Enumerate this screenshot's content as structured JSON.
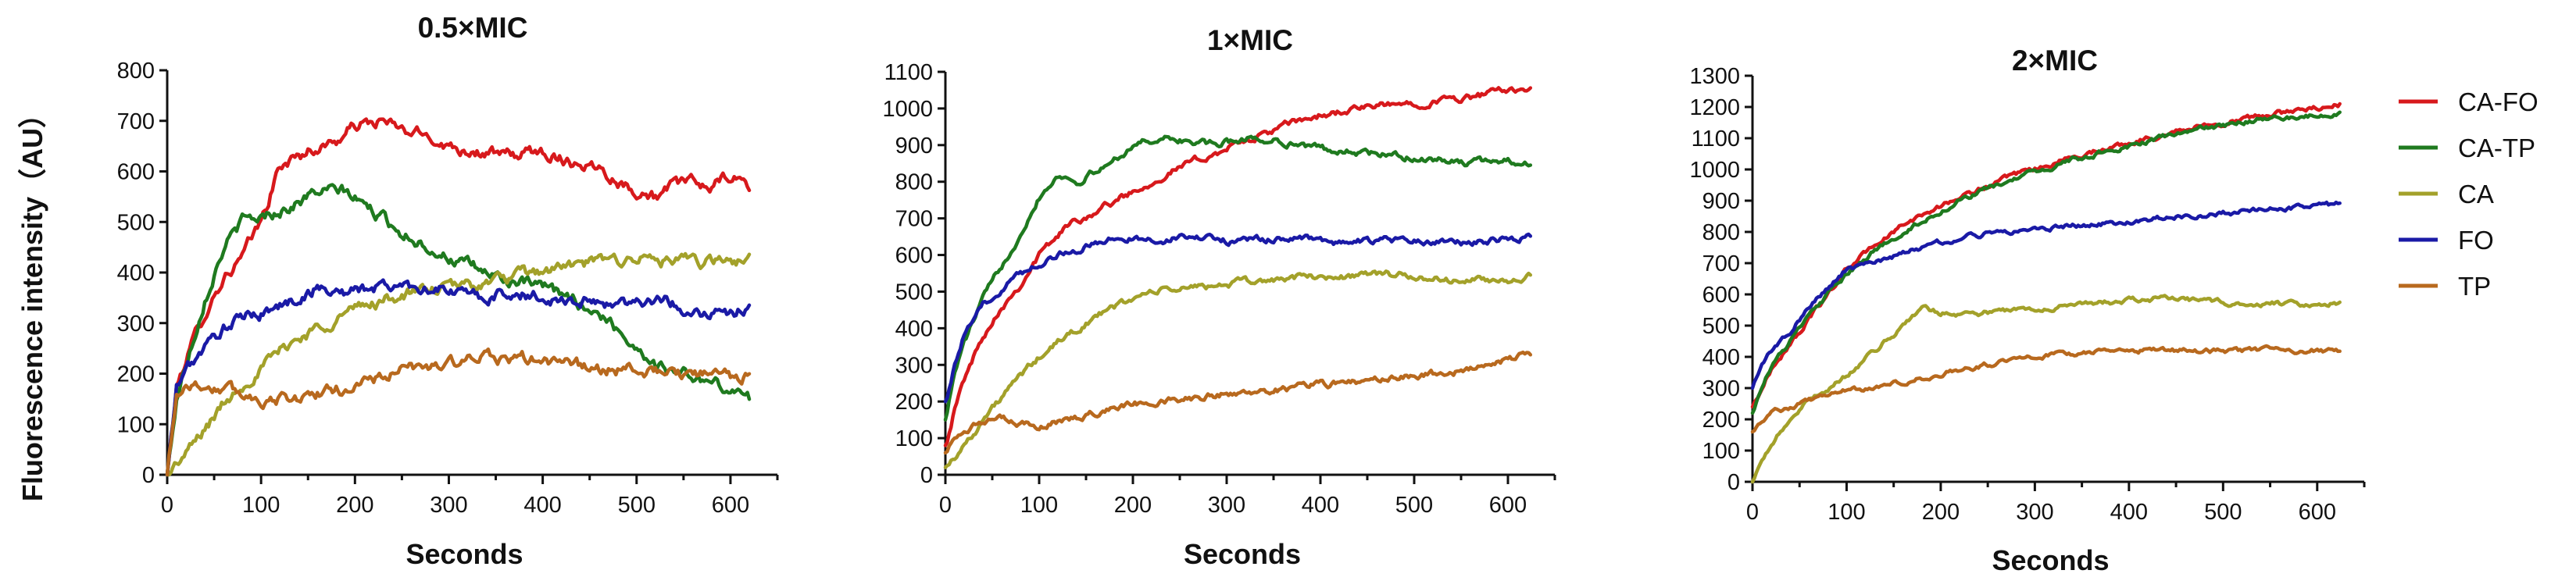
{
  "colors": {
    "CA-FO": "#d7191c",
    "CA-TP": "#1f7a1f",
    "CA": "#a3a12a",
    "FO": "#1a1aa6",
    "TP": "#b8691e"
  },
  "legend": {
    "items": [
      "CA-FO",
      "CA-TP",
      "CA",
      "FO",
      "TP"
    ]
  },
  "ylabel": "Fluorescence intensity（AU）",
  "chart_data": [
    {
      "type": "line",
      "title": "0.5×MIC",
      "xlabel": "Seconds",
      "xlim": [
        0,
        650
      ],
      "ylim": [
        0,
        800
      ],
      "xticks": [
        0,
        100,
        200,
        300,
        400,
        500,
        600
      ],
      "yticks": [
        0,
        100,
        200,
        300,
        400,
        500,
        600,
        700,
        800
      ],
      "noise": 18,
      "series": [
        {
          "name": "CA-FO",
          "x": [
            0,
            10,
            20,
            40,
            60,
            80,
            100,
            120,
            150,
            180,
            200,
            230,
            250,
            280,
            300,
            330,
            360,
            400,
            430,
            460,
            490,
            520,
            550,
            580,
            600,
            620
          ],
          "y": [
            0,
            170,
            230,
            320,
            390,
            430,
            500,
            610,
            640,
            660,
            690,
            700,
            680,
            670,
            650,
            640,
            630,
            640,
            620,
            610,
            570,
            550,
            580,
            570,
            590,
            570
          ]
        },
        {
          "name": "CA-TP",
          "x": [
            0,
            10,
            20,
            40,
            60,
            80,
            100,
            130,
            160,
            190,
            220,
            250,
            280,
            310,
            340,
            370,
            400,
            430,
            460,
            490,
            520,
            550,
            580,
            600,
            620
          ],
          "y": [
            0,
            150,
            220,
            350,
            450,
            500,
            510,
            530,
            560,
            560,
            520,
            480,
            450,
            420,
            400,
            380,
            370,
            350,
            320,
            270,
            220,
            200,
            180,
            170,
            150
          ]
        },
        {
          "name": "CA",
          "x": [
            0,
            20,
            40,
            60,
            80,
            100,
            130,
            160,
            190,
            220,
            260,
            300,
            340,
            380,
            420,
            460,
            500,
            540,
            580,
            620
          ],
          "y": [
            0,
            40,
            90,
            140,
            180,
            210,
            260,
            290,
            320,
            340,
            360,
            370,
            380,
            395,
            410,
            420,
            430,
            420,
            420,
            425
          ]
        },
        {
          "name": "FO",
          "x": [
            0,
            10,
            20,
            40,
            60,
            80,
            100,
            130,
            160,
            190,
            220,
            250,
            280,
            310,
            340,
            370,
            400,
            430,
            460,
            490,
            520,
            550,
            580,
            600,
            620
          ],
          "y": [
            0,
            170,
            210,
            250,
            290,
            310,
            320,
            340,
            370,
            360,
            370,
            375,
            370,
            360,
            350,
            360,
            350,
            345,
            340,
            340,
            350,
            330,
            320,
            320,
            330
          ]
        },
        {
          "name": "TP",
          "x": [
            0,
            10,
            20,
            40,
            60,
            80,
            100,
            130,
            160,
            190,
            220,
            260,
            300,
            340,
            380,
            420,
            460,
            500,
            540,
            580,
            620
          ],
          "y": [
            0,
            160,
            180,
            175,
            170,
            160,
            150,
            150,
            160,
            170,
            190,
            210,
            220,
            230,
            230,
            220,
            210,
            205,
            200,
            195,
            195
          ]
        }
      ]
    },
    {
      "type": "line",
      "title": "1×MIC",
      "xlabel": "Seconds",
      "xlim": [
        0,
        650
      ],
      "ylim": [
        0,
        1100
      ],
      "xticks": [
        0,
        100,
        200,
        300,
        400,
        500,
        600
      ],
      "yticks": [
        0,
        100,
        200,
        300,
        400,
        500,
        600,
        700,
        800,
        900,
        1000,
        1100
      ],
      "noise": 14,
      "series": [
        {
          "name": "CA-FO",
          "x": [
            0,
            10,
            20,
            40,
            60,
            80,
            100,
            130,
            160,
            190,
            220,
            250,
            280,
            310,
            340,
            370,
            400,
            440,
            480,
            520,
            560,
            600,
            625
          ],
          "y": [
            80,
            180,
            260,
            380,
            460,
            520,
            600,
            680,
            720,
            760,
            800,
            840,
            870,
            900,
            930,
            960,
            980,
            1000,
            1010,
            1020,
            1030,
            1050,
            1060
          ]
        },
        {
          "name": "CA-TP",
          "x": [
            0,
            10,
            20,
            40,
            60,
            80,
            100,
            120,
            140,
            170,
            200,
            230,
            260,
            290,
            320,
            360,
            400,
            440,
            480,
            520,
            560,
            600,
            625
          ],
          "y": [
            150,
            280,
            360,
            480,
            570,
            660,
            760,
            820,
            800,
            840,
            900,
            920,
            910,
            900,
            920,
            910,
            890,
            880,
            870,
            860,
            850,
            860,
            850
          ]
        },
        {
          "name": "CA",
          "x": [
            0,
            20,
            40,
            60,
            80,
            100,
            130,
            160,
            190,
            220,
            260,
            300,
            340,
            380,
            420,
            460,
            500,
            540,
            580,
            625
          ],
          "y": [
            20,
            80,
            150,
            210,
            270,
            320,
            380,
            430,
            470,
            500,
            510,
            520,
            530,
            540,
            540,
            550,
            540,
            530,
            530,
            540
          ]
        },
        {
          "name": "FO",
          "x": [
            0,
            10,
            20,
            40,
            60,
            80,
            100,
            130,
            160,
            190,
            220,
            260,
            300,
            340,
            380,
            420,
            460,
            500,
            540,
            580,
            625
          ],
          "y": [
            200,
            300,
            380,
            460,
            510,
            550,
            580,
            610,
            630,
            650,
            640,
            650,
            640,
            640,
            650,
            630,
            640,
            640,
            630,
            640,
            650
          ]
        },
        {
          "name": "TP",
          "x": [
            0,
            10,
            20,
            40,
            60,
            80,
            100,
            130,
            160,
            190,
            220,
            260,
            300,
            340,
            380,
            420,
            460,
            500,
            540,
            580,
            625
          ],
          "y": [
            60,
            100,
            130,
            140,
            150,
            140,
            130,
            150,
            170,
            190,
            200,
            210,
            220,
            230,
            240,
            250,
            260,
            270,
            280,
            300,
            330
          ]
        }
      ]
    },
    {
      "type": "line",
      "title": "2×MIC",
      "xlabel": "Seconds",
      "xlim": [
        0,
        650
      ],
      "ylim": [
        0,
        1300
      ],
      "xticks": [
        0,
        100,
        200,
        300,
        400,
        500,
        600
      ],
      "yticks": [
        0,
        100,
        200,
        300,
        400,
        500,
        600,
        700,
        800,
        900,
        1000,
        1100,
        1200,
        1300
      ],
      "noise": 12,
      "series": [
        {
          "name": "CA-FO",
          "x": [
            0,
            10,
            20,
            40,
            60,
            80,
            100,
            130,
            160,
            190,
            220,
            260,
            300,
            340,
            380,
            420,
            460,
            500,
            540,
            580,
            625
          ],
          "y": [
            240,
            300,
            360,
            440,
            520,
            600,
            680,
            760,
            820,
            870,
            910,
            960,
            1000,
            1040,
            1070,
            1100,
            1130,
            1150,
            1170,
            1190,
            1210
          ]
        },
        {
          "name": "CA-TP",
          "x": [
            0,
            10,
            20,
            40,
            60,
            80,
            100,
            130,
            160,
            190,
            220,
            260,
            300,
            340,
            380,
            420,
            460,
            500,
            540,
            580,
            625
          ],
          "y": [
            220,
            310,
            370,
            450,
            530,
            600,
            660,
            740,
            800,
            850,
            900,
            950,
            990,
            1030,
            1060,
            1090,
            1120,
            1140,
            1160,
            1170,
            1180
          ]
        },
        {
          "name": "CA",
          "x": [
            0,
            20,
            40,
            60,
            80,
            100,
            130,
            160,
            180,
            200,
            240,
            280,
            320,
            360,
            400,
            440,
            480,
            520,
            560,
            600,
            625
          ],
          "y": [
            0,
            120,
            200,
            260,
            300,
            340,
            420,
            500,
            560,
            540,
            540,
            550,
            560,
            570,
            580,
            590,
            580,
            570,
            570,
            570,
            575
          ]
        },
        {
          "name": "FO",
          "x": [
            0,
            10,
            20,
            40,
            60,
            80,
            100,
            130,
            160,
            190,
            220,
            260,
            300,
            340,
            380,
            420,
            460,
            500,
            540,
            580,
            625
          ],
          "y": [
            300,
            380,
            420,
            480,
            560,
            620,
            680,
            700,
            730,
            760,
            780,
            800,
            810,
            820,
            830,
            840,
            850,
            860,
            870,
            880,
            890
          ]
        },
        {
          "name": "TP",
          "x": [
            0,
            10,
            20,
            40,
            60,
            80,
            100,
            130,
            160,
            190,
            220,
            260,
            300,
            340,
            380,
            420,
            460,
            500,
            540,
            580,
            625
          ],
          "y": [
            160,
            200,
            220,
            240,
            260,
            280,
            290,
            300,
            320,
            340,
            360,
            380,
            400,
            410,
            420,
            420,
            420,
            420,
            420,
            420,
            420
          ]
        }
      ]
    }
  ]
}
